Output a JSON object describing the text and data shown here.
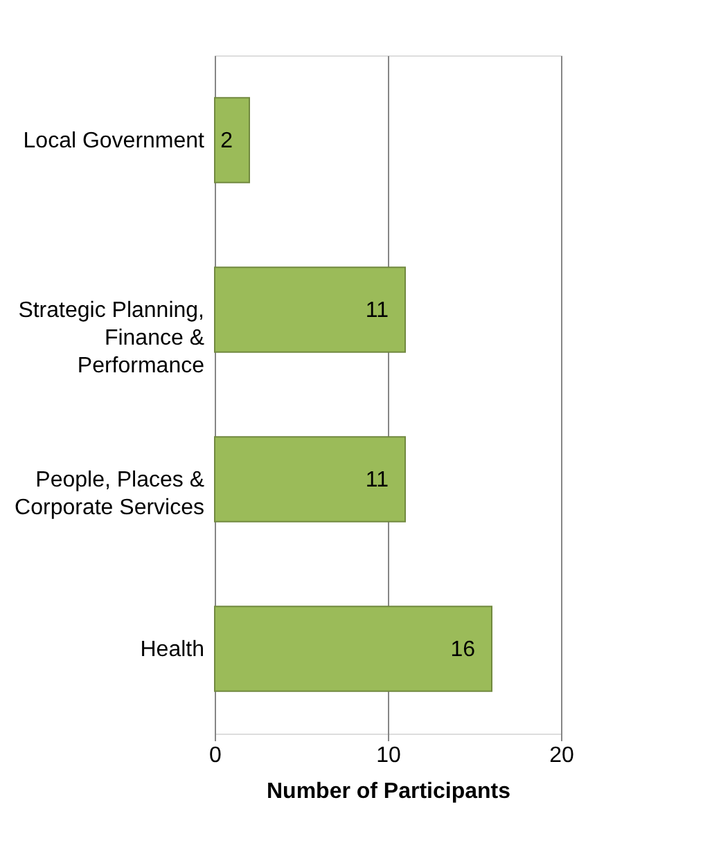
{
  "chart_data": {
    "type": "bar",
    "orientation": "horizontal",
    "categories": [
      "Local Government",
      "Strategic Planning, Finance & Performance",
      "People, Places & Corporate Services",
      "Health"
    ],
    "values": [
      2,
      11,
      11,
      16
    ],
    "color": "#9bbb59",
    "xlim": [
      0,
      20
    ],
    "xticks": [
      0,
      10,
      20
    ],
    "xlabel": "Number of Participants",
    "grid": "x",
    "data_labels": true
  }
}
